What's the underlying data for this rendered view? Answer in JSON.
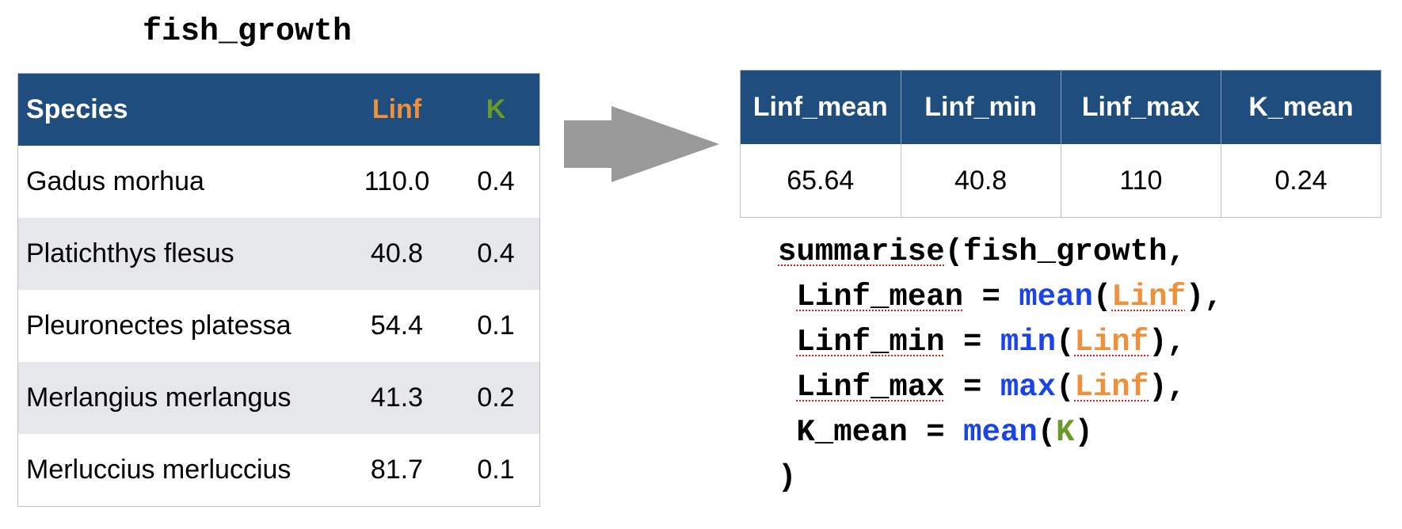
{
  "title": "fish_growth",
  "left_table": {
    "headers": {
      "species": "Species",
      "linf": "Linf",
      "k": "K"
    },
    "rows": [
      {
        "species": "Gadus morhua",
        "linf": "110.0",
        "k": "0.4"
      },
      {
        "species": "Platichthys flesus",
        "linf": "40.8",
        "k": "0.4"
      },
      {
        "species": "Pleuronectes platessa",
        "linf": "54.4",
        "k": "0.1"
      },
      {
        "species": "Merlangius merlangus",
        "linf": "41.3",
        "k": "0.2"
      },
      {
        "species": "Merluccius merluccius",
        "linf": "81.7",
        "k": "0.1"
      }
    ]
  },
  "arrow_icon": "right-arrow-icon",
  "right_table": {
    "headers": [
      "Linf_mean",
      "Linf_min",
      "Linf_max",
      "K_mean"
    ],
    "values": [
      "65.64",
      "40.8",
      "110",
      "0.24"
    ]
  },
  "code": {
    "line1": {
      "fn": "summarise",
      "open": "(",
      "arg": "fish_growth",
      "comma": ","
    },
    "line2": {
      "name": "Linf_mean",
      "eq": " = ",
      "fn": "mean",
      "open": "(",
      "arg": "Linf",
      "close": "),"
    },
    "line3": {
      "name": "Linf_min",
      "eq": " = ",
      "fn": "min",
      "open": "(",
      "arg": "Linf",
      "close": "),"
    },
    "line4": {
      "name": "Linf_max",
      "eq": " = ",
      "fn": "max",
      "open": "(",
      "arg": "Linf",
      "close": "),"
    },
    "line5": {
      "name": "K_mean",
      "eq": " = ",
      "fn": "mean",
      "open": "(",
      "arg": "K",
      "close": ")"
    },
    "line6": {
      "close": ")"
    }
  },
  "colors": {
    "header_bg": "#1f4e7e",
    "linf_accent": "#f0903a",
    "k_accent": "#6a9a2a",
    "function_blue": "#1a44e8",
    "stripe": "#e6e7ea",
    "arrow": "#999999"
  }
}
